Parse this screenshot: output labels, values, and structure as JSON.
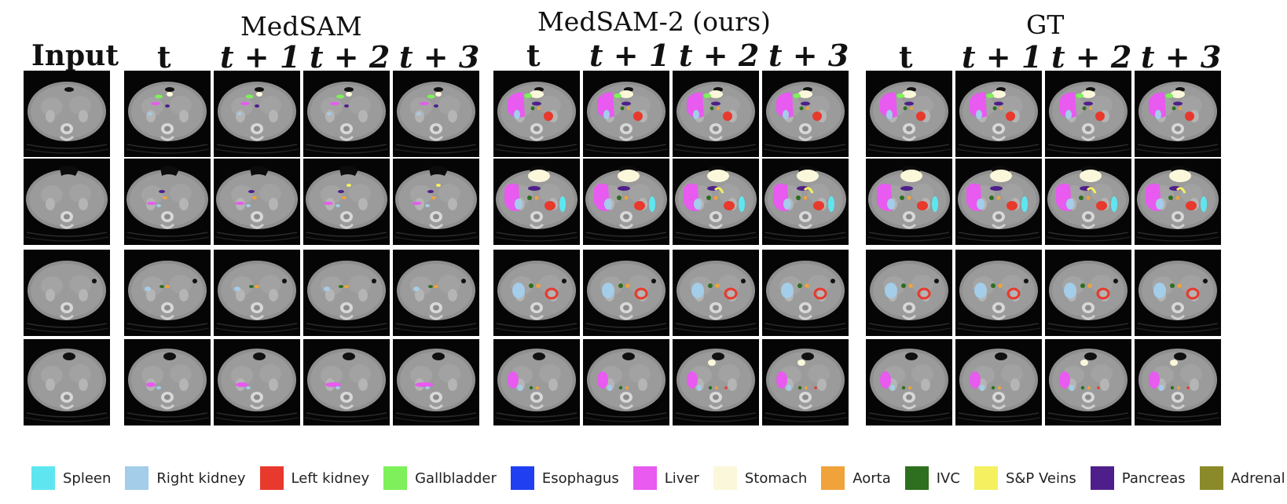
{
  "titles": {
    "medsam": "MedSAM",
    "medsam2": "MedSAM-2 (ours)",
    "gt": "GT",
    "input": "Input"
  },
  "time_labels": [
    "t",
    "t + 1",
    "t + 2",
    "t + 3"
  ],
  "legend": [
    {
      "label": "Spleen",
      "color": "#5ee6f0"
    },
    {
      "label": "Right kidney",
      "color": "#a3cde8"
    },
    {
      "label": "Left kidney",
      "color": "#e8392d"
    },
    {
      "label": "Gallbladder",
      "color": "#7df05a"
    },
    {
      "label": "Esophagus",
      "color": "#1f3ff0"
    },
    {
      "label": "Liver",
      "color": "#e85af0"
    },
    {
      "label": "Stomach",
      "color": "#fbf7da"
    },
    {
      "label": "Aorta",
      "color": "#f0a33a"
    },
    {
      "label": "IVC",
      "color": "#2e6e1f"
    },
    {
      "label": "S&P Veins",
      "color": "#f5f060"
    },
    {
      "label": "Pancreas",
      "color": "#4e1f8a"
    },
    {
      "label": "Adrenal gland",
      "color": "#8a8a2a"
    }
  ]
}
